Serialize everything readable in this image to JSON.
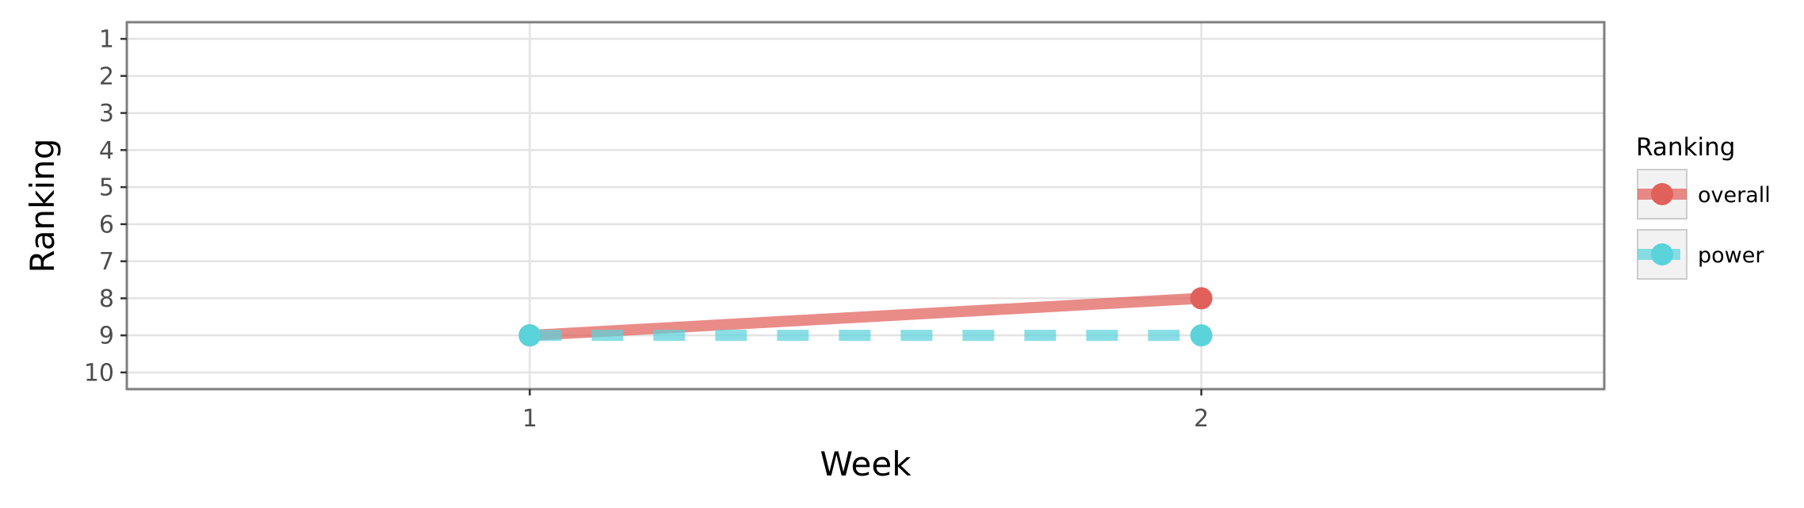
{
  "chart_data": {
    "type": "line",
    "title": "",
    "xlabel": "Week",
    "ylabel": "Ranking",
    "x": [
      1,
      2
    ],
    "x_ticks": [
      "1",
      "2"
    ],
    "xlim": [
      0.4,
      2.6
    ],
    "y_ticks": [
      "1",
      "2",
      "3",
      "4",
      "5",
      "6",
      "7",
      "8",
      "9",
      "10"
    ],
    "ylim": [
      10.45,
      0.55
    ],
    "y_reversed": true,
    "grid": true,
    "legend": {
      "title": "Ranking",
      "position": "right"
    },
    "series": [
      {
        "name": "overall",
        "values": [
          9,
          8
        ],
        "color": "#e0605a",
        "linestyle": "solid"
      },
      {
        "name": "power",
        "values": [
          9,
          9
        ],
        "color": "#5bd3db",
        "linestyle": "dashed"
      }
    ]
  }
}
